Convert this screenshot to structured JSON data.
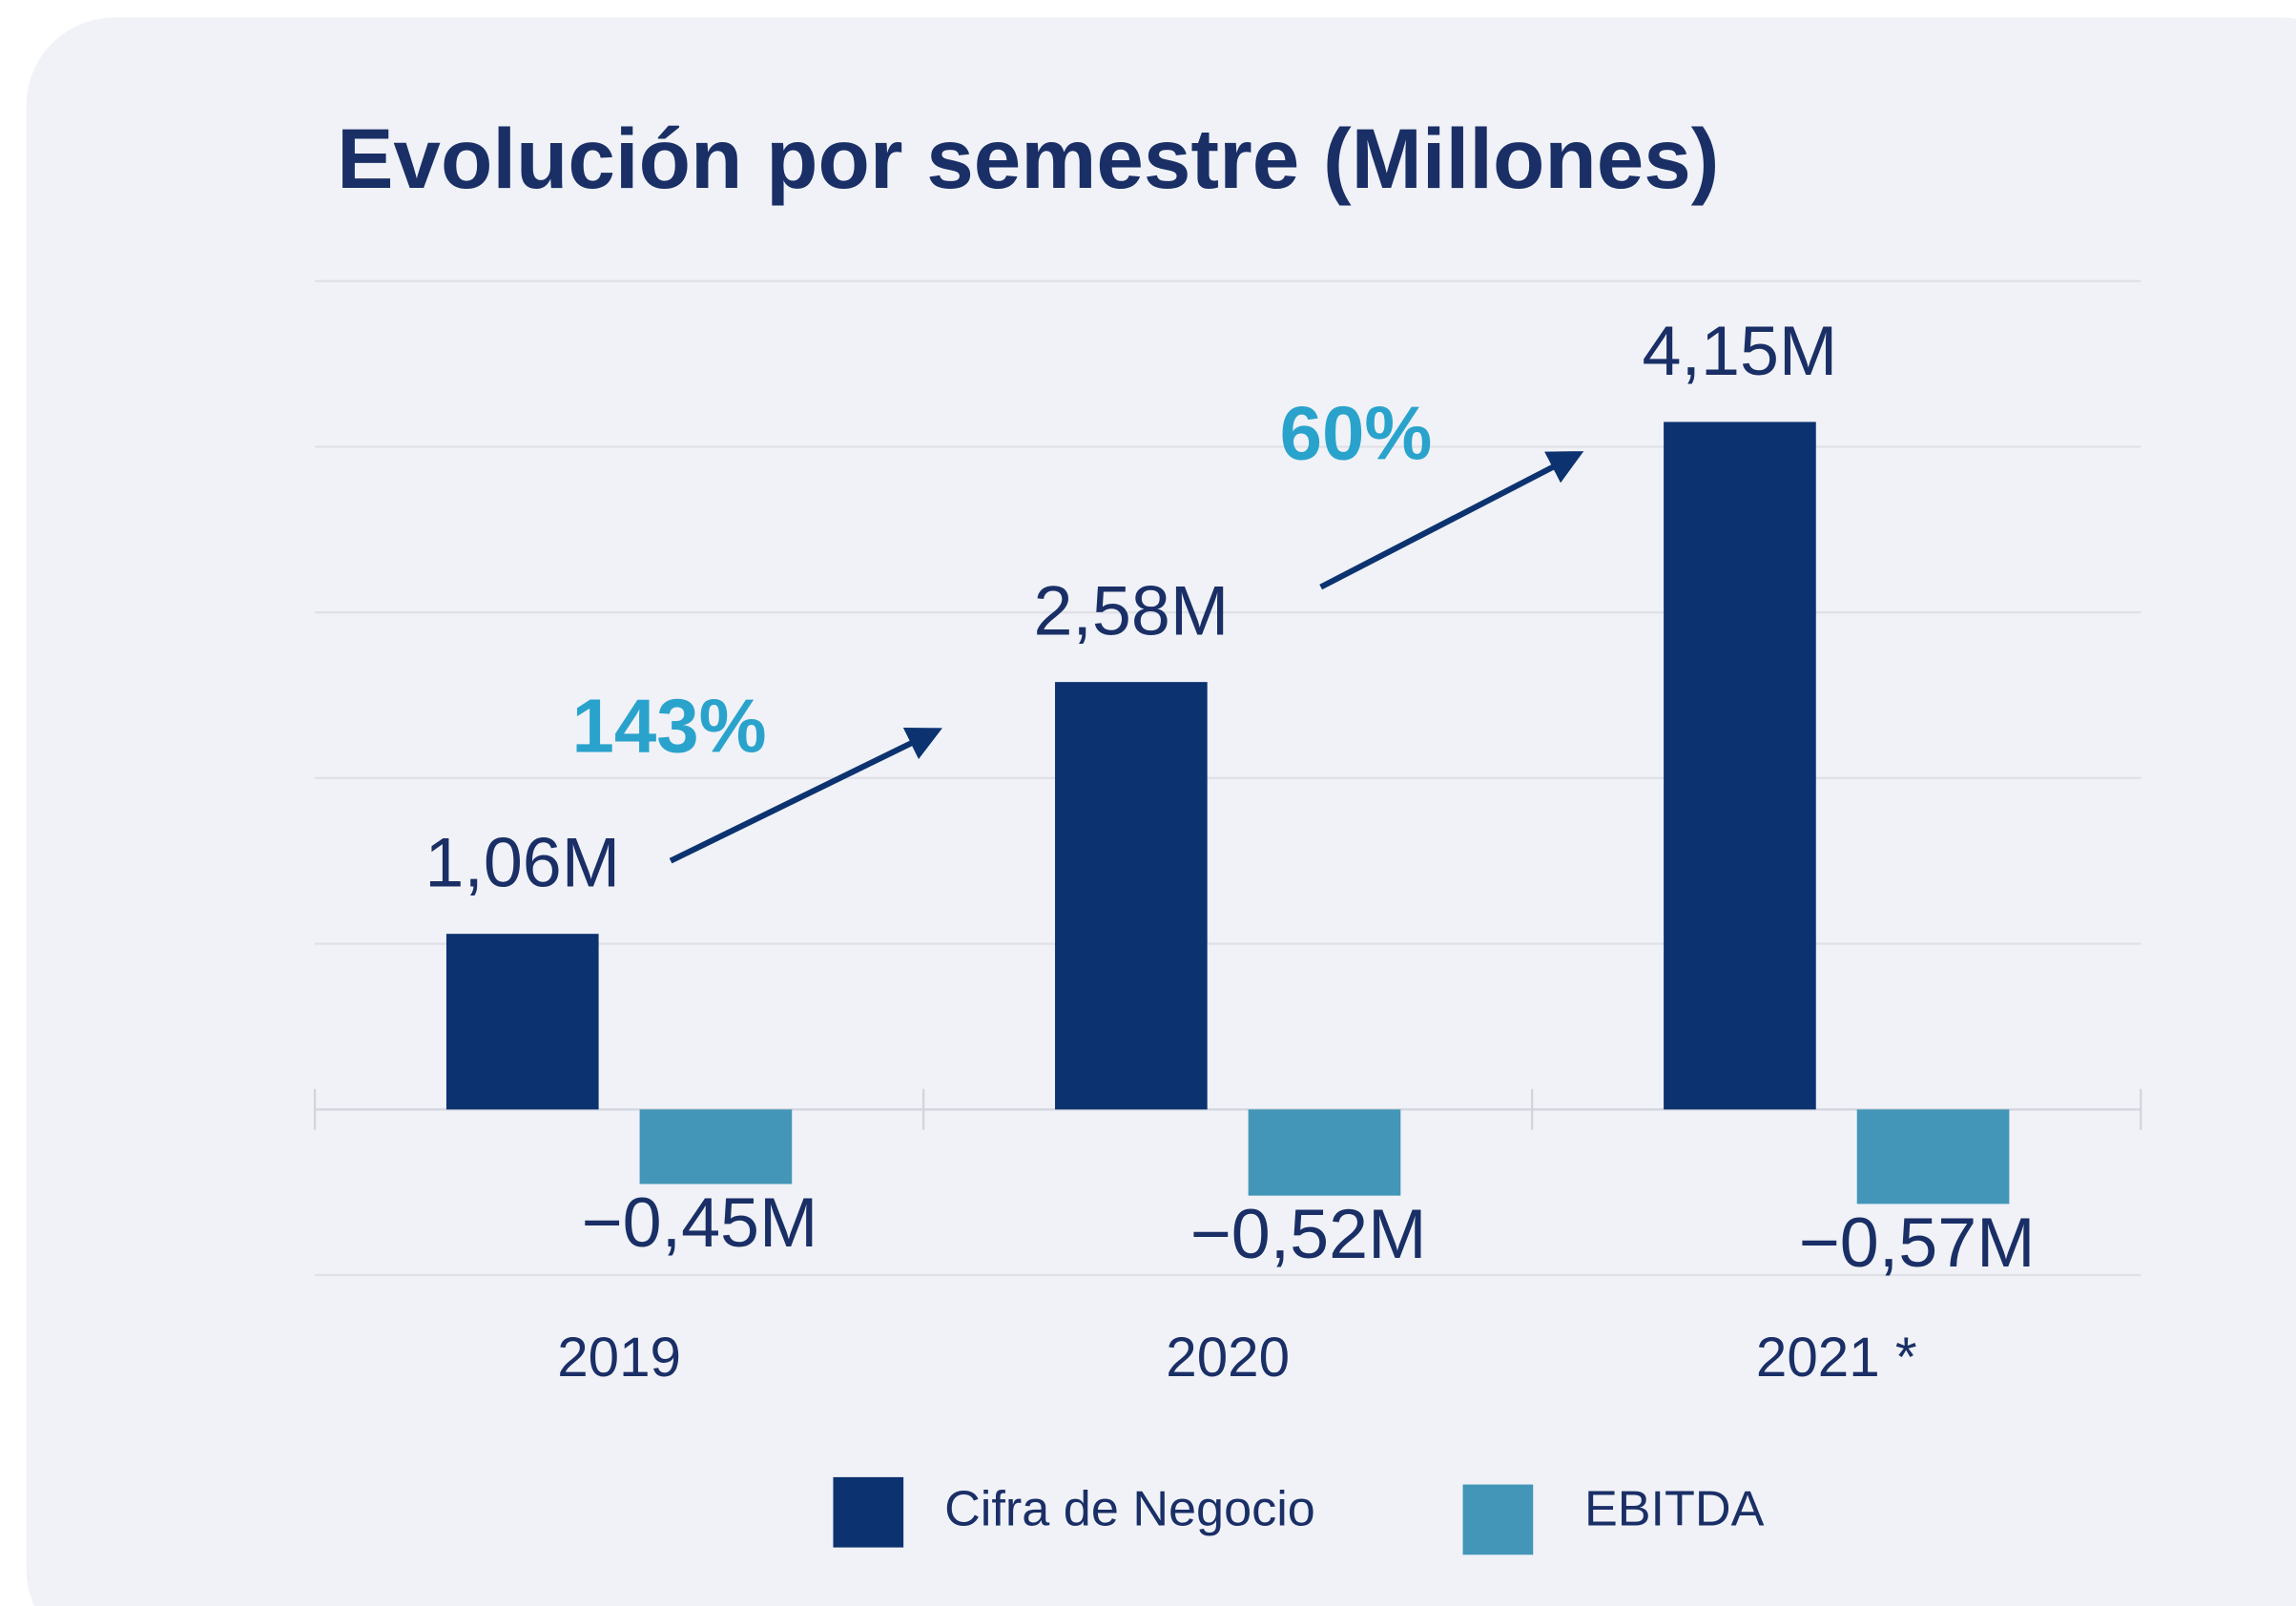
{
  "chart_data": {
    "type": "bar",
    "title": "Evolución por semestre (Millones)",
    "categories": [
      "2019",
      "2020",
      "2021 *"
    ],
    "series": [
      {
        "name": "Cifra de Negocio",
        "color": "#0c3370",
        "values": [
          1.06,
          2.58,
          4.15
        ],
        "value_labels": [
          "1,06M",
          "2,58M",
          "4,15M"
        ]
      },
      {
        "name": "EBITDA",
        "color": "#4396b8",
        "values": [
          -0.45,
          -0.52,
          -0.57
        ],
        "value_labels": [
          "−0,45M",
          "−0,52M",
          "−0,57M"
        ]
      }
    ],
    "annotations": [
      {
        "text": "143%",
        "color": "#2aa3cc"
      },
      {
        "text": "60%",
        "color": "#2aa3cc"
      }
    ],
    "ylim": [
      -1,
      5
    ],
    "yticks": [
      -1,
      0,
      1,
      2,
      3,
      4,
      5
    ],
    "grid": true
  }
}
